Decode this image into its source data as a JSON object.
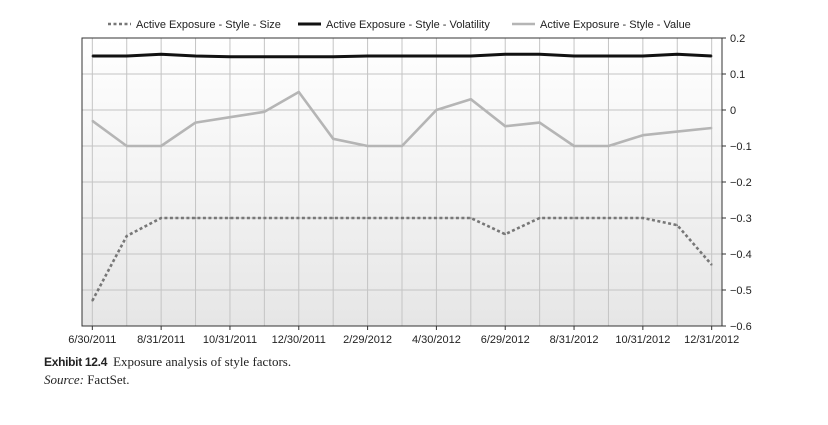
{
  "chart_data": {
    "type": "line",
    "x": [
      "6/30/2011",
      "7/31/2011",
      "8/31/2011",
      "9/30/2011",
      "10/31/2011",
      "11/30/2011",
      "12/30/2011",
      "1/31/2012",
      "2/29/2012",
      "3/30/2012",
      "4/30/2012",
      "5/31/2012",
      "6/29/2012",
      "7/31/2012",
      "8/31/2012",
      "9/28/2012",
      "10/31/2012",
      "11/30/2012",
      "12/31/2012"
    ],
    "x_tick_labels": [
      "6/30/2011",
      "8/31/2011",
      "10/31/2011",
      "12/30/2011",
      "2/29/2012",
      "4/30/2012",
      "6/29/2012",
      "8/31/2012",
      "10/31/2012",
      "12/31/2012"
    ],
    "series": [
      {
        "name": "Active Exposure - Style - Size",
        "style": "dashed",
        "color": "#777777",
        "values": [
          -0.53,
          -0.35,
          -0.3,
          -0.3,
          -0.3,
          -0.3,
          -0.3,
          -0.3,
          -0.3,
          -0.3,
          -0.3,
          -0.3,
          -0.345,
          -0.3,
          -0.3,
          -0.3,
          -0.3,
          -0.32,
          -0.43
        ]
      },
      {
        "name": "Active Exposure - Style - Volatility",
        "style": "solid",
        "color": "#111111",
        "values": [
          0.15,
          0.15,
          0.155,
          0.15,
          0.148,
          0.148,
          0.148,
          0.148,
          0.15,
          0.15,
          0.15,
          0.15,
          0.155,
          0.155,
          0.15,
          0.15,
          0.15,
          0.155,
          0.15
        ]
      },
      {
        "name": "Active Exposure - Style - Value",
        "style": "solid",
        "color": "#b5b5b5",
        "values": [
          -0.03,
          -0.1,
          -0.1,
          -0.035,
          -0.02,
          -0.005,
          0.05,
          -0.08,
          -0.1,
          -0.1,
          0.0,
          0.03,
          -0.045,
          -0.035,
          -0.1,
          -0.1,
          -0.07,
          -0.06,
          -0.05
        ]
      }
    ],
    "y_ticks": [
      "0.2",
      "0.1",
      "0",
      "−0.1",
      "−0.2",
      "−0.3",
      "−0.4",
      "−0.5",
      "−0.6"
    ],
    "ylim": [
      -0.6,
      0.2
    ],
    "grid": true,
    "legend_position": "top",
    "title": "",
    "xlabel": "",
    "ylabel": ""
  },
  "caption": {
    "label": "Exhibit 12.4",
    "text": "Exposure analysis of style factors.",
    "source_label": "Source:",
    "source_value": "FactSet."
  }
}
